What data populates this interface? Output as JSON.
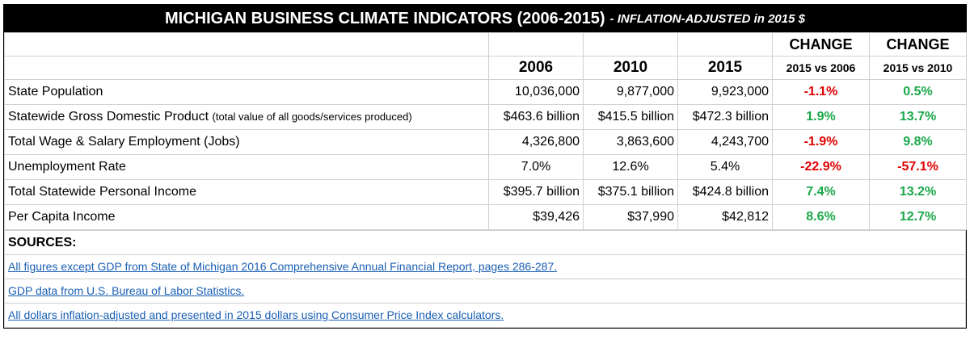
{
  "title": {
    "main": "MICHIGAN BUSINESS CLIMATE INDICATORS (2006-2015)",
    "sub": "- INFLATION-ADJUSTED in 2015 $"
  },
  "header": {
    "years": [
      "2006",
      "2010",
      "2015"
    ],
    "change_label": "CHANGE",
    "change_cols": [
      "2015 vs 2006",
      "2015 vs 2010"
    ]
  },
  "rows": [
    {
      "label": "State Population",
      "note": "",
      "v2006": "10,036,000",
      "v2010": "9,877,000",
      "v2015": "9,923,000",
      "c1": "-1.1%",
      "c2": "0.5%",
      "align": "num"
    },
    {
      "label": "Statewide Gross Domestic Product",
      "note": "(total value of all goods/services produced)",
      "v2006": "$463.6 billion",
      "v2010": "$415.5 billion",
      "v2015": "$472.3 billion",
      "c1": "1.9%",
      "c2": "13.7%",
      "align": "num"
    },
    {
      "label": "Total Wage & Salary Employment (Jobs)",
      "note": "",
      "v2006": "4,326,800",
      "v2010": "3,863,600",
      "v2015": "4,243,700",
      "c1": "-1.9%",
      "c2": "9.8%",
      "align": "num"
    },
    {
      "label": "Unemployment Rate",
      "note": "",
      "v2006": "7.0%",
      "v2010": "12.6%",
      "v2015": "5.4%",
      "c1": "-22.9%",
      "c2": "-57.1%",
      "align": "ctr"
    },
    {
      "label": "Total Statewide Personal Income",
      "note": "",
      "v2006": "$395.7 billion",
      "v2010": "$375.1 billion",
      "v2015": "$424.8 billion",
      "c1": "7.4%",
      "c2": "13.2%",
      "align": "num"
    },
    {
      "label": "Per Capita Income",
      "note": "",
      "v2006": "$39,426",
      "v2010": "$37,990",
      "v2015": "$42,812",
      "c1": "8.6%",
      "c2": "12.7%",
      "align": "num"
    }
  ],
  "change_colors": {
    "negative": "#e00000",
    "positive": "#1aa84a"
  },
  "sources": {
    "heading": "SOURCES:",
    "links": [
      "All figures except GDP from State of Michigan 2016 Comprehensive Annual Financial Report, pages 286-287.",
      "GDP data from U.S. Bureau of Labor Statistics.",
      "All dollars inflation-adjusted and presented in 2015 dollars using Consumer Price Index calculators."
    ]
  }
}
